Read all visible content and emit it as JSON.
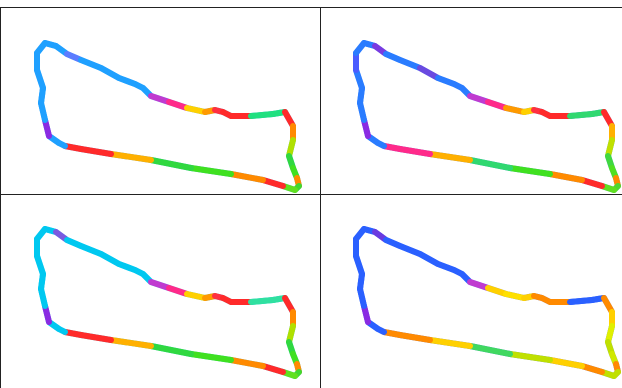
{
  "panels": [
    {
      "id": "panel-top-left",
      "colors": [
        "#1fa0ff",
        "#8a2be2",
        "#1fa0ff",
        "#1fa0ff",
        "#1fa0ff",
        "#1fa0ff",
        "#1fa0ff",
        "#1fa0ff",
        "#1fa0ff",
        "#5c7cff",
        "#1fa0ff",
        "#1fa0ff",
        "#1fa0ff",
        "#1fa0ff",
        "#1fa0ff",
        "#c03ad0",
        "#ff2a8a",
        "#ffd000",
        "#ff9a00",
        "#ff3040",
        "#ff2a2a",
        "#ff2a2a",
        "#20e080",
        "#20e080",
        "#ff2a2a",
        "#ff8a00",
        "#b0e000",
        "#30d840",
        "#40e020",
        "#ff8a00",
        "#40d830",
        "#60e020",
        "#ff2a2a",
        "#ff8a00",
        "#40e020",
        "#30d840",
        "#ffb000",
        "#ff2a2a",
        "#ff2a2a",
        "#1fa0ff",
        "#1fa0ff"
      ]
    },
    {
      "id": "panel-top-right",
      "colors": [
        "#2a7cff",
        "#8a2be2",
        "#2a7cff",
        "#2a7cff",
        "#2a7cff",
        "#4a5cff",
        "#2a7cff",
        "#2a7cff",
        "#7a3ae0",
        "#2a7cff",
        "#2a7cff",
        "#6a4ae0",
        "#2a7cff",
        "#2a7cff",
        "#2a7cff",
        "#c03ad0",
        "#ff2a8a",
        "#ff9a00",
        "#ffd000",
        "#ff3040",
        "#ff2a2a",
        "#ff2a2a",
        "#30d870",
        "#30d870",
        "#ff2a2a",
        "#ffb000",
        "#c0e000",
        "#40d840",
        "#50e020",
        "#ff8a00",
        "#50d830",
        "#60e020",
        "#ff2a2a",
        "#ff8a00",
        "#40e020",
        "#30d870",
        "#ffb000",
        "#ff2a8a",
        "#ff2a8a",
        "#2a7cff",
        "#2a7cff"
      ]
    },
    {
      "id": "panel-bottom-left",
      "colors": [
        "#00c8f0",
        "#8a2be2",
        "#00c8f0",
        "#00c8f0",
        "#00c8f0",
        "#00c8f0",
        "#00c8f0",
        "#00c8f0",
        "#7a5ae0",
        "#00c8f0",
        "#00c8f0",
        "#00c8f0",
        "#00c8f0",
        "#00c8f0",
        "#00c8f0",
        "#c03ad0",
        "#ff2a8a",
        "#ffd000",
        "#ff9a00",
        "#ff3040",
        "#ff2a2a",
        "#ff2a2a",
        "#30e0a0",
        "#30e0a0",
        "#ff2a2a",
        "#ff8a00",
        "#b0e000",
        "#30d840",
        "#40e020",
        "#ff8a00",
        "#40d830",
        "#60e020",
        "#ff2a2a",
        "#ff8a00",
        "#40e020",
        "#30d840",
        "#ffb000",
        "#ff2a2a",
        "#ff2a2a",
        "#00c8f0",
        "#00c8f0"
      ]
    },
    {
      "id": "panel-bottom-right",
      "colors": [
        "#2a60ff",
        "#8a2be2",
        "#2a60ff",
        "#2a60ff",
        "#2a60ff",
        "#2a60ff",
        "#2a60ff",
        "#2a60ff",
        "#6a3ae0",
        "#2a60ff",
        "#2a60ff",
        "#2a60ff",
        "#2a60ff",
        "#2a60ff",
        "#2a60ff",
        "#c03ad0",
        "#ffd000",
        "#ffe000",
        "#ffd000",
        "#ff8a00",
        "#ff8a00",
        "#ff8a00",
        "#2a60ff",
        "#2a60ff",
        "#ff8a00",
        "#ffd000",
        "#e0f000",
        "#c0e000",
        "#d0e800",
        "#ff8a00",
        "#c0e000",
        "#c0e000",
        "#ff8a00",
        "#ffd000",
        "#c0e000",
        "#40d860",
        "#ffd000",
        "#ff8a00",
        "#ff8a00",
        "#2a60ff",
        "#2a60ff"
      ]
    }
  ]
}
